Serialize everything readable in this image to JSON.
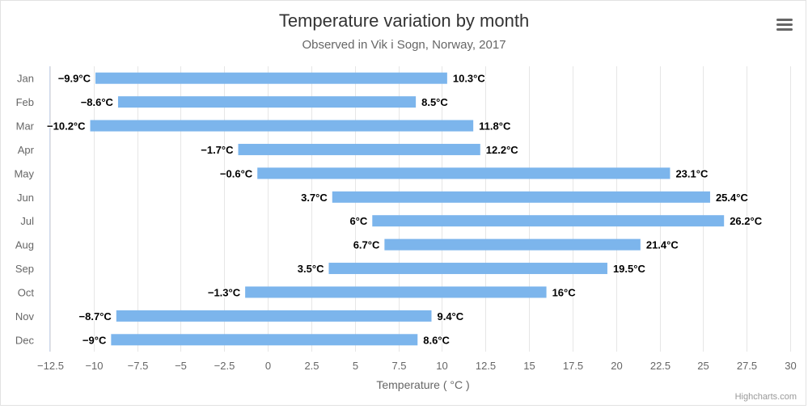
{
  "title": "Temperature variation by month",
  "subtitle": "Observed in Vik i Sogn, Norway, 2017",
  "credits": "Highcharts.com",
  "menu": {
    "icon": "hamburger-menu-icon"
  },
  "chart_data": {
    "type": "bar",
    "orientation": "horizontal",
    "variant": "columnrange",
    "categories": [
      "Jan",
      "Feb",
      "Mar",
      "Apr",
      "May",
      "Jun",
      "Jul",
      "Aug",
      "Sep",
      "Oct",
      "Nov",
      "Dec"
    ],
    "series": [
      {
        "low": [
          -9.9,
          -8.6,
          -10.2,
          -1.7,
          -0.6,
          3.7,
          6,
          6.7,
          3.5,
          -1.3,
          -8.7,
          -9
        ],
        "high": [
          10.3,
          8.5,
          11.8,
          12.2,
          23.1,
          25.4,
          26.2,
          21.4,
          19.5,
          16,
          9.4,
          8.6
        ],
        "low_labels": [
          "−9.9°C",
          "−8.6°C",
          "−10.2°C",
          "−1.7°C",
          "−0.6°C",
          "3.7°C",
          "6°C",
          "6.7°C",
          "3.5°C",
          "−1.3°C",
          "−8.7°C",
          "−9°C"
        ],
        "high_labels": [
          "10.3°C",
          "8.5°C",
          "11.8°C",
          "12.2°C",
          "23.1°C",
          "25.4°C",
          "26.2°C",
          "21.4°C",
          "19.5°C",
          "16°C",
          "9.4°C",
          "8.6°C"
        ],
        "color": "#7cb5ec"
      }
    ],
    "xlabel": "Temperature ( °C )",
    "xlim": [
      -12.5,
      30
    ],
    "x_ticks": [
      -12.5,
      -10,
      -7.5,
      -5,
      -2.5,
      0,
      2.5,
      5,
      7.5,
      10,
      12.5,
      15,
      17.5,
      20,
      22.5,
      25,
      27.5,
      30
    ],
    "x_tick_labels": [
      "−12.5",
      "−10",
      "−7.5",
      "−5",
      "−2.5",
      "0",
      "2.5",
      "5",
      "7.5",
      "10",
      "12.5",
      "15",
      "17.5",
      "20",
      "22.5",
      "25",
      "27.5",
      "30"
    ],
    "grid": true,
    "legend": false,
    "colors": {
      "bar": "#7cb5ec",
      "grid": "#e6e6e6",
      "axis_line": "#ccd6eb"
    }
  }
}
